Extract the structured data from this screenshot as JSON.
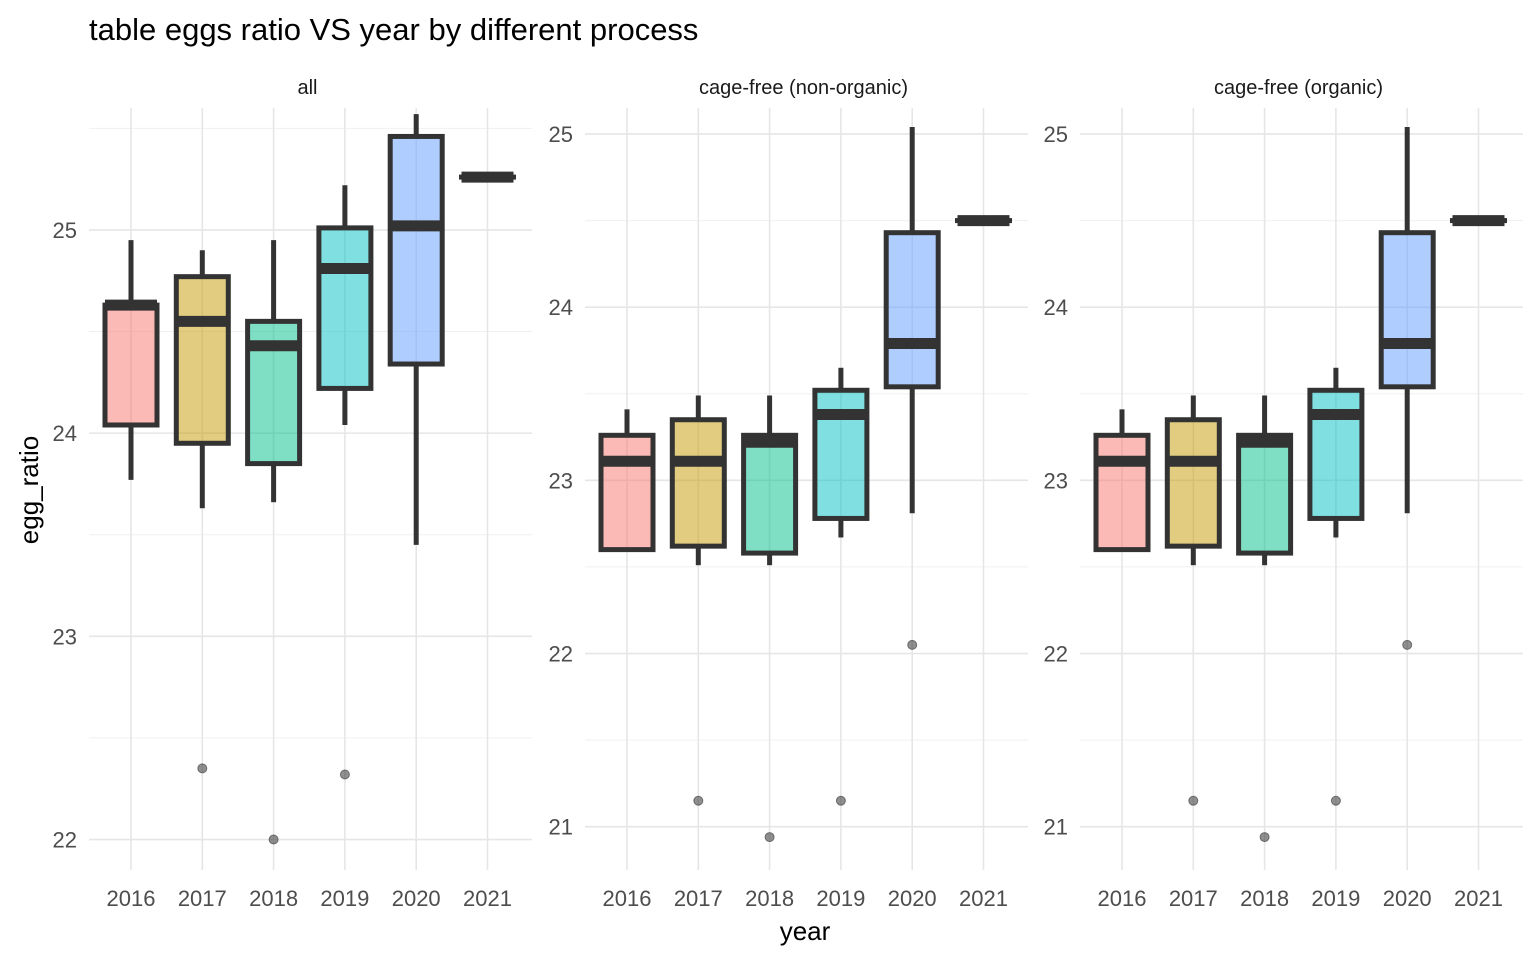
{
  "chart_data": {
    "type": "box",
    "title": "table eggs ratio VS year by different process",
    "xlabel": "year",
    "ylabel": "egg_ratio",
    "categories": [
      "2016",
      "2017",
      "2018",
      "2019",
      "2020",
      "2021"
    ],
    "fill_colors": [
      "#F8766D",
      "#C49A00",
      "#00C08B",
      "#00BFC4",
      "#619CFF",
      "#F564E3"
    ],
    "grid": true,
    "legend": "none",
    "facets": [
      {
        "label": "all",
        "ylim": [
          21.85,
          25.6
        ],
        "yticks": [
          22,
          23,
          24,
          25
        ],
        "boxes": [
          {
            "year": "2016",
            "lower": 24.04,
            "q1": 24.04,
            "median": 24.63,
            "q3": 24.63,
            "upper": 24.95,
            "whisker_low": 23.77,
            "outliers": []
          },
          {
            "year": "2017",
            "lower": 23.95,
            "q1": 23.95,
            "median": 24.55,
            "q3": 24.77,
            "upper": 24.9,
            "whisker_low": 23.63,
            "outliers": [
              22.35
            ]
          },
          {
            "year": "2018",
            "lower": 23.85,
            "q1": 23.85,
            "median": 24.43,
            "q3": 24.55,
            "upper": 24.95,
            "whisker_low": 23.66,
            "outliers": [
              22.0
            ]
          },
          {
            "year": "2019",
            "lower": 24.22,
            "q1": 24.22,
            "median": 24.81,
            "q3": 25.01,
            "upper": 25.22,
            "whisker_low": 24.04,
            "outliers": [
              22.32
            ]
          },
          {
            "year": "2020",
            "lower": 24.34,
            "q1": 24.34,
            "median": 25.02,
            "q3": 25.46,
            "upper": 25.57,
            "whisker_low": 23.45,
            "outliers": []
          },
          {
            "year": "2021",
            "lower": 25.26,
            "q1": 25.26,
            "median": 25.26,
            "q3": 25.26,
            "upper": 25.26,
            "whisker_low": 25.26,
            "outliers": []
          }
        ]
      },
      {
        "label": "cage-free (non-organic)",
        "ylim": [
          20.75,
          25.15
        ],
        "yticks": [
          21,
          22,
          23,
          24,
          25
        ],
        "boxes": [
          {
            "year": "2016",
            "q1": 22.6,
            "median": 23.11,
            "q3": 23.26,
            "upper": 23.41,
            "whisker_low": 22.6,
            "outliers": []
          },
          {
            "year": "2017",
            "q1": 22.62,
            "median": 23.11,
            "q3": 23.35,
            "upper": 23.49,
            "whisker_low": 22.51,
            "outliers": [
              21.15
            ]
          },
          {
            "year": "2018",
            "q1": 22.58,
            "median": 23.22,
            "q3": 23.26,
            "upper": 23.49,
            "whisker_low": 22.51,
            "outliers": [
              20.94
            ]
          },
          {
            "year": "2019",
            "q1": 22.78,
            "median": 23.38,
            "q3": 23.52,
            "upper": 23.65,
            "whisker_low": 22.67,
            "outliers": [
              21.15
            ]
          },
          {
            "year": "2020",
            "q1": 23.54,
            "median": 23.79,
            "q3": 24.43,
            "upper": 25.04,
            "whisker_low": 22.81,
            "outliers": [
              22.05
            ]
          },
          {
            "year": "2021",
            "q1": 24.5,
            "median": 24.5,
            "q3": 24.5,
            "upper": 24.5,
            "whisker_low": 24.5,
            "outliers": []
          }
        ]
      },
      {
        "label": "cage-free (organic)",
        "ylim": [
          20.75,
          25.15
        ],
        "yticks": [
          21,
          22,
          23,
          24,
          25
        ],
        "boxes": [
          {
            "year": "2016",
            "q1": 22.6,
            "median": 23.11,
            "q3": 23.26,
            "upper": 23.41,
            "whisker_low": 22.6,
            "outliers": []
          },
          {
            "year": "2017",
            "q1": 22.62,
            "median": 23.11,
            "q3": 23.35,
            "upper": 23.49,
            "whisker_low": 22.51,
            "outliers": [
              21.15
            ]
          },
          {
            "year": "2018",
            "q1": 22.58,
            "median": 23.22,
            "q3": 23.26,
            "upper": 23.49,
            "whisker_low": 22.51,
            "outliers": [
              20.94
            ]
          },
          {
            "year": "2019",
            "q1": 22.78,
            "median": 23.38,
            "q3": 23.52,
            "upper": 23.65,
            "whisker_low": 22.67,
            "outliers": [
              21.15
            ]
          },
          {
            "year": "2020",
            "q1": 23.54,
            "median": 23.79,
            "q3": 24.43,
            "upper": 25.04,
            "whisker_low": 22.81,
            "outliers": [
              22.05
            ]
          },
          {
            "year": "2021",
            "q1": 24.5,
            "median": 24.5,
            "q3": 24.5,
            "upper": 24.5,
            "whisker_low": 24.5,
            "outliers": []
          }
        ]
      }
    ]
  }
}
